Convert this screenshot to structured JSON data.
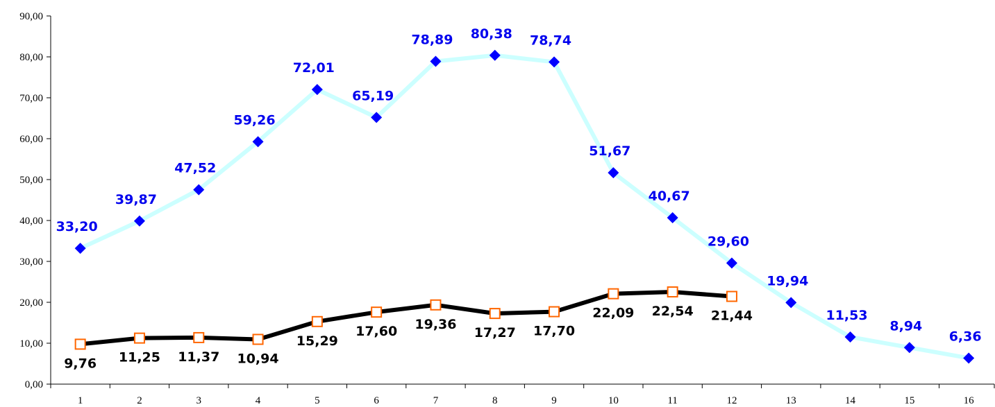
{
  "chart_data": {
    "type": "line",
    "categories": [
      "1",
      "2",
      "3",
      "4",
      "5",
      "6",
      "7",
      "8",
      "9",
      "10",
      "11",
      "12",
      "13",
      "14",
      "15",
      "16"
    ],
    "series": [
      {
        "color": "#ccffff",
        "marker": "diamond",
        "marker_color": "#0000ff",
        "label_color": "#0000ee",
        "label_position": "above",
        "values": [
          33.2,
          39.87,
          47.52,
          59.26,
          72.01,
          65.19,
          78.89,
          80.38,
          78.74,
          51.67,
          40.67,
          29.6,
          19.94,
          11.53,
          8.94,
          6.36
        ],
        "value_labels": [
          "33,20",
          "39,87",
          "47,52",
          "59,26",
          "72,01",
          "65,19",
          "78,89",
          "80,38",
          "78,74",
          "51,67",
          "40,67",
          "29,60",
          "19,94",
          "11,53",
          "8,94",
          "6,36"
        ]
      },
      {
        "color": "#000000",
        "marker": "square",
        "marker_color": "#ff6600",
        "label_color": "#000000",
        "label_position": "below",
        "values": [
          9.76,
          11.25,
          11.37,
          10.94,
          15.29,
          17.6,
          19.36,
          17.27,
          17.7,
          22.09,
          22.54,
          21.44,
          null,
          null,
          null,
          null
        ],
        "value_labels": [
          "9,76",
          "11,25",
          "11,37",
          "10,94",
          "15,29",
          "17,60",
          "19,36",
          "17,27",
          "17,70",
          "22,09",
          "22,54",
          "21,44",
          null,
          null,
          null,
          null
        ]
      }
    ],
    "ylim": [
      0,
      90
    ],
    "yticks": [
      {
        "value": 0,
        "label": "0,00"
      },
      {
        "value": 10,
        "label": "10,00"
      },
      {
        "value": 20,
        "label": "20,00"
      },
      {
        "value": 30,
        "label": "30,00"
      },
      {
        "value": 40,
        "label": "40,00"
      },
      {
        "value": 50,
        "label": "50,00"
      },
      {
        "value": 60,
        "label": "60,00"
      },
      {
        "value": 70,
        "label": "70,00"
      },
      {
        "value": 80,
        "label": "80,00"
      },
      {
        "value": 90,
        "label": "90,00"
      }
    ],
    "grid": false
  }
}
